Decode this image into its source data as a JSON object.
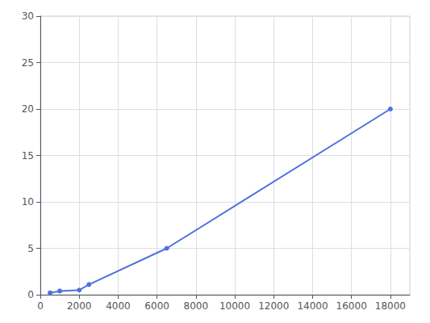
{
  "chart_data": {
    "type": "line",
    "x": [
      500,
      1000,
      2000,
      2500,
      6500,
      18000
    ],
    "values": [
      0.2,
      0.4,
      0.5,
      1.1,
      5.0,
      20.0
    ],
    "marker": "circle",
    "xlim": [
      0,
      19000
    ],
    "xticks": [
      0,
      2000,
      4000,
      6000,
      8000,
      10000,
      12000,
      14000,
      16000,
      18000
    ],
    "ylim": [
      0,
      30
    ],
    "yticks": [
      0,
      5,
      10,
      15,
      20,
      25,
      30
    ],
    "grid": true
  }
}
